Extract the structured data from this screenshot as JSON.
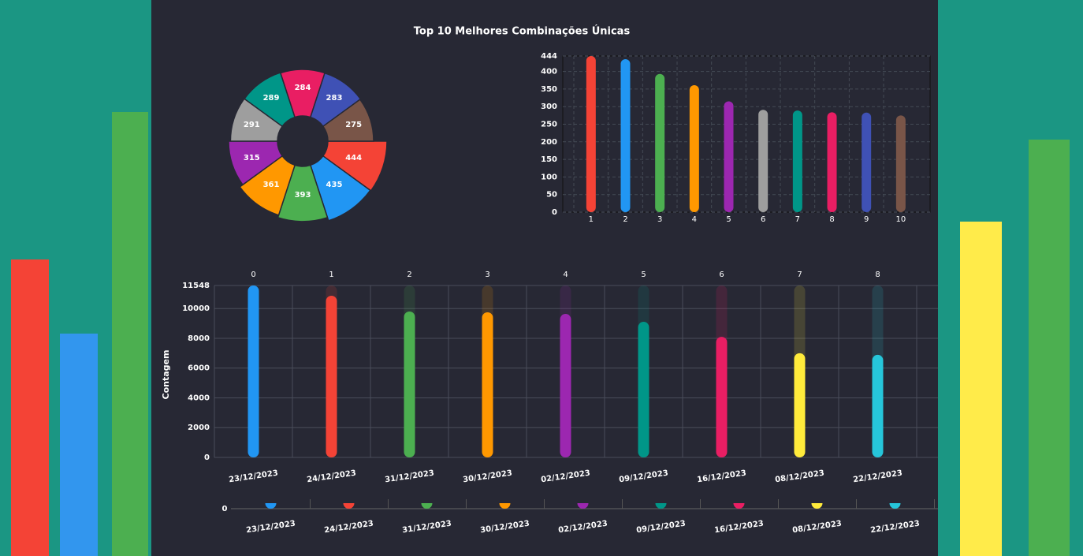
{
  "chart_data": [
    {
      "type": "pie",
      "rose": true,
      "title": "Top 10 Melhores Combinações Únicas",
      "values": [
        444,
        435,
        393,
        361,
        315,
        291,
        289,
        284,
        283,
        275
      ],
      "colors": [
        "#f44336",
        "#2196f3",
        "#4caf50",
        "#ff9800",
        "#9c27b0",
        "#9e9e9e",
        "#009688",
        "#e91e63",
        "#3f51b5",
        "#795548"
      ]
    },
    {
      "type": "bar",
      "categories": [
        "1",
        "2",
        "3",
        "4",
        "5",
        "6",
        "7",
        "8",
        "9",
        "10"
      ],
      "values": [
        444,
        435,
        393,
        361,
        315,
        291,
        289,
        284,
        283,
        275
      ],
      "colors": [
        "#f44336",
        "#2196f3",
        "#4caf50",
        "#ff9800",
        "#9c27b0",
        "#9e9e9e",
        "#009688",
        "#e91e63",
        "#3f51b5",
        "#795548"
      ],
      "ylim": [
        0,
        444
      ],
      "yticks": [
        0,
        50,
        100,
        150,
        200,
        250,
        300,
        350,
        400,
        444
      ],
      "grid": true
    },
    {
      "type": "bar",
      "categories": [
        "23/12/2023",
        "24/12/2023",
        "31/12/2023",
        "30/12/2023",
        "02/12/2023",
        "09/12/2023",
        "16/12/2023",
        "08/12/2023",
        "22/12/2023"
      ],
      "top_labels": [
        0,
        1,
        2,
        3,
        4,
        5,
        6,
        7,
        8
      ],
      "ylabel": "Contagem",
      "values": [
        11548,
        10860,
        9800,
        9750,
        9640,
        9110,
        8100,
        7000,
        6890
      ],
      "colors": [
        "#2196f3",
        "#f44336",
        "#4caf50",
        "#ff9800",
        "#9c27b0",
        "#009688",
        "#e91e63",
        "#ffeb3b",
        "#26c6da"
      ],
      "ylim": [
        0,
        11548
      ],
      "yticks": [
        0,
        2000,
        4000,
        6000,
        8000,
        10000,
        11548
      ],
      "grid": true,
      "slider_yticks": [
        0
      ]
    }
  ]
}
